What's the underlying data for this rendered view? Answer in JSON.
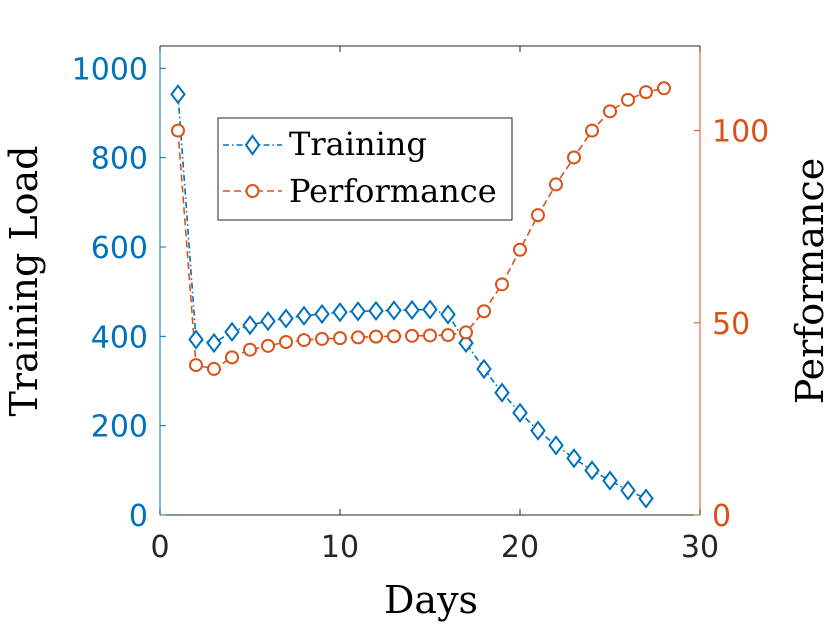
{
  "chart_data": {
    "type": "line",
    "title": "",
    "xlabel": "Days",
    "ylabel_left": "Training Load",
    "ylabel_right": "Performance",
    "xlim": [
      0,
      30
    ],
    "ylim_left": [
      0,
      1050
    ],
    "ylim_right": [
      0,
      122
    ],
    "x_ticks": [
      0,
      10,
      20,
      30
    ],
    "x_tick_labels": [
      "0",
      "10",
      "20",
      "30"
    ],
    "y_left_ticks": [
      0,
      200,
      400,
      600,
      800,
      1000
    ],
    "y_left_tick_labels": [
      "0",
      "200",
      "400",
      "600",
      "800",
      "1000"
    ],
    "y_right_ticks": [
      0,
      50,
      100
    ],
    "y_right_tick_labels": [
      "0",
      "50",
      "100"
    ],
    "grid": false,
    "legend_position": "upper-left",
    "series": [
      {
        "name": "Training",
        "axis": "left",
        "color": "#0072BD",
        "marker": "diamond",
        "line_style": "dash-dot",
        "x": [
          1,
          2,
          3,
          4,
          5,
          6,
          7,
          8,
          9,
          10,
          11,
          12,
          13,
          14,
          15,
          16,
          17,
          18,
          19,
          20,
          21,
          22,
          23,
          24,
          25,
          26,
          27
        ],
        "values": [
          942,
          393,
          385,
          410,
          425,
          434,
          440,
          446,
          450,
          454,
          456,
          457,
          458,
          459,
          460,
          449,
          385,
          327,
          274,
          229,
          189,
          156,
          127,
          100,
          77,
          55,
          37
        ]
      },
      {
        "name": "Performance",
        "axis": "right",
        "color": "#D95319",
        "marker": "circle",
        "line_style": "dashed",
        "x": [
          1,
          2,
          3,
          4,
          5,
          6,
          7,
          8,
          9,
          10,
          11,
          12,
          13,
          14,
          15,
          16,
          17,
          18,
          19,
          20,
          21,
          22,
          23,
          24,
          25,
          26,
          27,
          28
        ],
        "values": [
          100,
          39,
          38,
          41,
          43,
          44,
          45,
          45.5,
          45.8,
          46,
          46.2,
          46.4,
          46.5,
          46.6,
          46.7,
          46.8,
          47.5,
          53,
          60,
          69,
          78,
          86,
          93,
          100,
          105,
          108,
          110,
          111
        ]
      }
    ]
  }
}
